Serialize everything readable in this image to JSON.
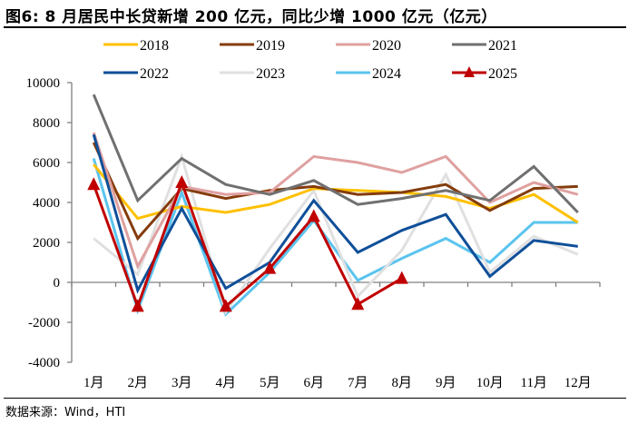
{
  "header": {
    "title": "图6:  8 月居民中长贷新增 200 亿元，同比少增 1000 亿元（亿元）"
  },
  "footer": {
    "source": "数据来源：Wind，HTI"
  },
  "chart_data": {
    "type": "line",
    "title": "8月居民中长贷新增200亿元，同比少增1000亿元（亿元）",
    "xlabel": "",
    "ylabel": "亿元",
    "categories": [
      "1月",
      "2月",
      "3月",
      "4月",
      "5月",
      "6月",
      "7月",
      "8月",
      "9月",
      "10月",
      "11月",
      "12月"
    ],
    "ylim": [
      -4000,
      10000
    ],
    "yticks": [
      "10000",
      "8000",
      "6000",
      "4000",
      "2000",
      "0",
      "-2000",
      "-4000"
    ],
    "ytick_values": [
      10000,
      8000,
      6000,
      4000,
      2000,
      0,
      -2000,
      -4000
    ],
    "grid": false,
    "legend_position": "top",
    "series": [
      {
        "name": "2018",
        "color": "#FFC000",
        "marker": "none",
        "values": [
          5900,
          3200,
          3800,
          3500,
          3900,
          4700,
          4600,
          4500,
          4300,
          3700,
          4400,
          3000
        ]
      },
      {
        "name": "2019",
        "color": "#843C0C",
        "marker": "none",
        "values": [
          7000,
          2200,
          4700,
          4200,
          4600,
          4800,
          4400,
          4500,
          4900,
          3600,
          4700,
          4800
        ]
      },
      {
        "name": "2020",
        "color": "#E0A0A0",
        "marker": "none",
        "values": [
          7500,
          800,
          4800,
          4400,
          4500,
          6300,
          6000,
          5500,
          6300,
          4000,
          5000,
          4400
        ]
      },
      {
        "name": "2021",
        "color": "#707070",
        "marker": "none",
        "values": [
          9400,
          4100,
          6200,
          4900,
          4400,
          5100,
          3900,
          4200,
          4600,
          4100,
          5800,
          3500
        ]
      },
      {
        "name": "2022",
        "color": "#0F4F99",
        "marker": "none",
        "values": [
          7400,
          -400,
          3700,
          -300,
          1000,
          4100,
          1500,
          2600,
          3400,
          300,
          2100,
          1800
        ]
      },
      {
        "name": "2023",
        "color": "#E0E0E0",
        "marker": "none",
        "values": [
          2200,
          400,
          6300,
          -1500,
          1700,
          4600,
          -700,
          1600,
          5400,
          500,
          2300,
          1400
        ]
      },
      {
        "name": "2024",
        "color": "#5BC4EE",
        "marker": "none",
        "values": [
          6200,
          -1400,
          4500,
          -1600,
          500,
          3100,
          100,
          1200,
          2200,
          1000,
          3000,
          3000
        ]
      },
      {
        "name": "2025",
        "color": "#C00000",
        "marker": "triangle",
        "values": [
          4900,
          -1200,
          5000,
          -1200,
          700,
          3300,
          -1100,
          200,
          null,
          null,
          null,
          null
        ]
      }
    ]
  }
}
